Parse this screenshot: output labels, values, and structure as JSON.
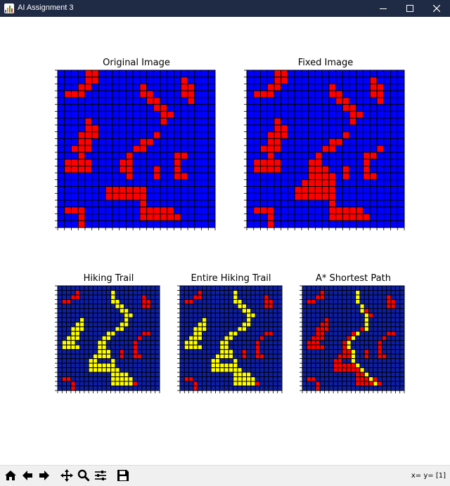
{
  "window": {
    "title": "AI Assignment 3"
  },
  "status": {
    "coords": "x= y= [1]"
  },
  "toolbar": {
    "buttons": [
      "home-icon",
      "back-arrow-icon",
      "forward-arrow-icon",
      "pan-icon",
      "zoom-icon",
      "configure-subplots-icon",
      "save-icon"
    ]
  },
  "colors": {
    "blue": "#0000ff",
    "navy": "#0d1fa8",
    "red": "#ff0000",
    "yellow": "#ffff00",
    "grid": "#000000"
  },
  "chart_data": [
    {
      "type": "heatmap",
      "title": "Original Image",
      "rows": [
        "BBBBRRBBBBBBBBBBBBBBBBB",
        "BBBBRRBBBBBBBBBBBBRBBBB",
        "BBBRRBBBBBBBRBBBBBRRBBB",
        "BRRRBBBBBBBBRRBBBBRRBBB",
        "BBBBBBBBBBBBBRRBBBBRBBB",
        "BBBBBBBBBBBBBBRRBBBBBBB",
        "BBBBBBBBBBBBBBBRRBBBBBB",
        "BBBBRBBBBBBBBBBRBBBBBBB",
        "BBBBRRBBBBBBBBBBBBBBBBB",
        "BBBRRRBBBBBBBBRBBBBBBBB",
        "BBBRRBBBBBBBRRBBBBBBBBB",
        "BBRRRBBBBBBRRBBBBBBBBBB",
        "BBBRBBBBBBRBBBBBBRRBBBB",
        "BRRRRBBBBRRBBBBBBRBBBBB",
        "BRRRRBBBBRRBBBRBBRBBBBB",
        "BBBBBBBBBBRBBBRBBRRBBBB",
        "BBBBBBBBBBBBBBBBBBBBBBB",
        "BBBBBBBRRRRRRBBBBBBBBBB",
        "BBBBBBBRRRRRRBBBBBBBBBB",
        "BBBBBBBBBBBBRBBBBBBBBBB",
        "BRRRBBBBBBBBRRRRRBBBBBB",
        "BBBRBBBBBBBBRRRRRRBBBBB",
        "BBBRBBBBBBBBBBBBBBBBBBB"
      ]
    },
    {
      "type": "heatmap",
      "title": "Fixed Image",
      "rows": [
        "BBBBRRBBBBBBBBBBBBBBBBB",
        "BBBBRRBBBBBBBBBBBBRBBBB",
        "BBBRRBBBBBBBRBBBBBRRBBB",
        "BRRRBBBBBBBBRRBBBBRRBBB",
        "BBBBBBBBBBBBBRRBBBBRBBB",
        "BBBBBBBBBBBBBBRRBBBBBBB",
        "BBBBBBBBBBBBBBBRRBBBBBB",
        "BBBBRBBBBBBBBBBRBBBBBBB",
        "BBBBRRBBBBBBBBBBBBBBBBB",
        "BBBRRRBBBBBBBBRBBBBBBBB",
        "BBBRRBBBBBBBRRBBBBBBBBB",
        "BBRRRBBBBBBRRBBBBBBRBBB",
        "BBBRBBBBBBRBBBBBBRRBBBB",
        "BRRRRBBBBRRBBBBBBRBBBBB",
        "BRRRRBBBBRRRBBRBBRBBBBB",
        "BBBBBBBBBRRRRBRBBRRBBBB",
        "BBBBBBBBRRRRRBBBBBBBBBB",
        "BBBBBBBRRRRRRBBBBBBBBBB",
        "BBBBBBBRRRRRRBBBBBBBBBB",
        "BBBBBBBBBBBBRBBBBBBBBBB",
        "BRRRBBBBBBBBRRRRRBBBBBB",
        "BBBRBBBBBBBBRRRRRRBBBBB",
        "BBBRBBBBBBBBBBBBBBBBBBB"
      ]
    },
    {
      "type": "heatmap",
      "title": "Hiking Trail",
      "rows": [
        "BBBBBBBBBBBBBBBBBBBBBBB",
        "BBBBRBBBBBBBYBBBBBBBBBB",
        "BBBRRBBBBBBBYBBBBBBRBBB",
        "BRRBBBBBBBBBYYBBBBBRRBB",
        "BBBBBBBBBBBBBYYBBBBRRBB",
        "BBBBBBBBBBBBBBYYBBBBBBB",
        "BBBBBBBBBBBBBBBYYBBBBBB",
        "BBBBBYBBBBBBBBBYBBBBBBB",
        "BBBBYYBBBBBBBBYYBBBBBBB",
        "BBBYYYBBBBBBBYYBBBBBBBB",
        "BBBYYBBBBBBYYBBBBBBRRBB",
        "BBYYYBBBBBYYBBBBBBRBBBB",
        "BYYYBBBBBYYBBBBBBRBBBBB",
        "BYYYYBBBBYYBBBBBBRBBBBB",
        "BBBBBBBBBYYYBBRBBRBBBBB",
        "BBBBBBBBYYYYBBRBBRRBBBB",
        "BBBBBBBYYBBBYBBBBBBBBBB",
        "BBBBBBBYYYYYYBBBBBBBBBB",
        "BBBBBBBYYYYYYYBBBBBBBBB",
        "BBBBBBBBBBBBYYYYBBBBBBB",
        "BRRBBBBBBBBBYYYYYBBBBBB",
        "BBBRBBBBBBBBYYYYYRBBBBB",
        "BBBRBBBBBBBBBBBBBBBBBBB"
      ]
    },
    {
      "type": "heatmap",
      "title": "Entire Hiking Trail",
      "rows": [
        "BBBBBBBBBBBBBBBBBBBBBBB",
        "BBBBRBBBBBBBYBBBBBBBBBB",
        "BBBRRBBBBBBBYBBBBBBRBBB",
        "BRRBBBBBBBBBYYBBBBBRRBB",
        "BBBBBBBBBBBBBYYBBBBRRBB",
        "BBBBBBBBBBBBBBYYBBBBBBB",
        "BBBBBBBBBBBBBBBYYBBBBBB",
        "BBBBBYBBBBBBBBBYBBBBBBB",
        "BBBBYYBBBBBBBBYYBBBBBBB",
        "BBBYYYBBBBBBBYYBBBBBBBB",
        "BBBYYBBBBBBYYBBBBBBRRBB",
        "BBYYYBBBBBYYBBBBBBRBBBB",
        "BYYYBBBBBYYBBBBBBRBBBBB",
        "BYYYYBBBBYYBBBBBBRBBBBB",
        "BBBBBBBBBYYYBBRBBRBBBBB",
        "BBBBBBBBYYYYBBRBBRRBBBB",
        "BBBBBBBYYBBBYBBBBBBBBBB",
        "BBBBBBBYYYYYYBBBBBBBBBB",
        "BBBBBBBYYYYYYYBBBBBBBBB",
        "BBBBBBBBBBBBYYYYBBBBBBB",
        "BRRBBBBBBBBBYYYYYBBBBBB",
        "BBBRBBBBBBBBYYYYYRBBBBB",
        "BBBRBBBBBBBBBBBBBBBBBBB"
      ]
    },
    {
      "type": "heatmap",
      "title": "A* Shortest Path",
      "rows": [
        "BBBBBBBBBBBBBBBBBBBBBBB",
        "BBBBRBBBBBBBYBBBBBBBBBB",
        "BBBRRBBBBBBBYBBBBBBRBBB",
        "BRRBBBBBBBBBYBBBBBBRRBB",
        "BBBBBBBBBBBBBYBBBBBRRBB",
        "BBBBBBBBBBBBBYRBBBBBBBB",
        "BBBBBBBBBBBBBBYRBBBBBBB",
        "BBBBBRBBBBBBBBYBBBBBBBB",
        "BBBBRRBBBBBBBBYBBBBBBBB",
        "BBBRRRBBBBBBBRYBBBBBBBB",
        "BBBRRBBBBBBRYBBBBBBRRBB",
        "BBRRRBBBBBRYBBBBBBRBBBB",
        "BRRRBBBBBRYBBBBBBRBBBBB",
        "BRRRRBBBBRYBBBBBBRBBBBB",
        "BBBBBBBBBRRYBBRBBRBBBBB",
        "BBBBBBBBRRRYBBRBBRRBBBB",
        "BBBBBBBRRBBYBBBBBBBBBBB",
        "BBBBBBBRRRRRYBBBBBBBBBB",
        "BBBBBBBRRRRRRYBBBBBBBBB",
        "BBBBBBBBBBBBRRYBBBBBBBB",
        "BRRBBBBBBBBBRRRYRBBBBBB",
        "BBBRBBBBBBBBRRRRYRBBBBB",
        "BBBRBBBBBBBBBBBBBBBBBBB"
      ]
    }
  ]
}
